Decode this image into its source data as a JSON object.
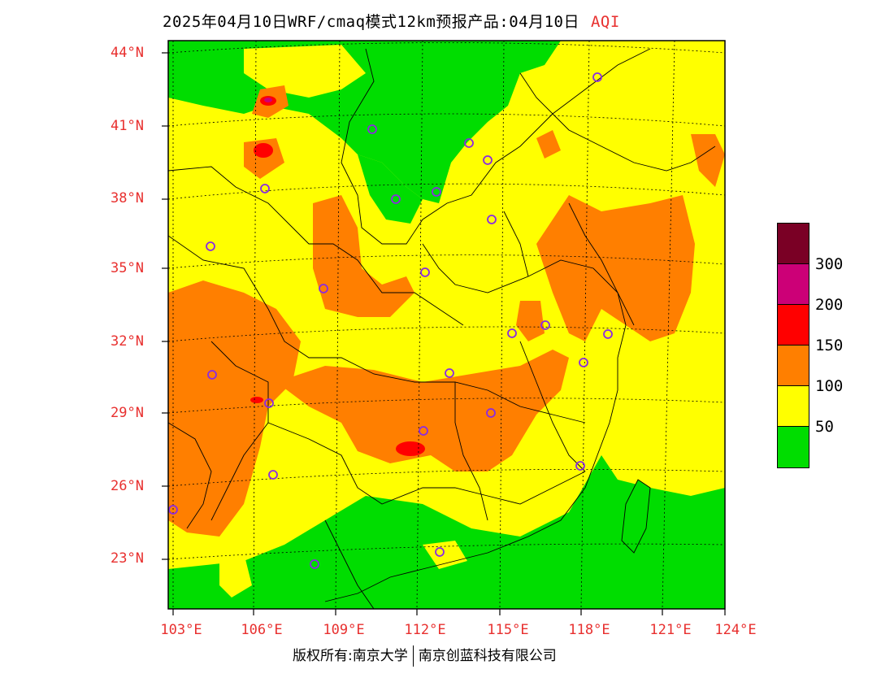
{
  "title": {
    "main": "2025年04月10日WRF/cmaq模式12km预报产品:04月10日",
    "variable": "AQI"
  },
  "lat_ticks": [
    "44°N",
    "41°N",
    "38°N",
    "35°N",
    "32°N",
    "29°N",
    "26°N",
    "23°N"
  ],
  "lon_ticks": [
    "103°E",
    "106°E",
    "109°E",
    "112°E",
    "115°E",
    "118°E",
    "121°E",
    "124°E"
  ],
  "legend": {
    "colors": [
      "#7a0025",
      "#cc0077",
      "#ff0000",
      "#ff7f00",
      "#ffff00",
      "#00dd00"
    ],
    "labels": [
      "300",
      "200",
      "150",
      "100",
      "50"
    ]
  },
  "footer": {
    "left": "版权所有:南京大学",
    "right": "南京创蓝科技有限公司"
  },
  "palette": {
    "good": "#00dd00",
    "moderate": "#ffff00",
    "sensitive": "#ff7f00",
    "unhealthy": "#ff0000",
    "very_unhealthy": "#cc0077",
    "axis_label": "#e8302f",
    "city_marker": "#8a2be2"
  }
}
